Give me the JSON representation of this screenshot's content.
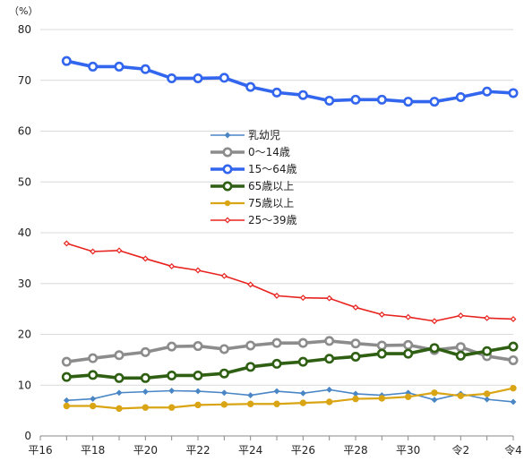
{
  "chart_data": {
    "type": "line",
    "ylabel": "（%）",
    "ylim": [
      0,
      80
    ],
    "yticks": [
      0,
      10,
      20,
      30,
      40,
      50,
      60,
      70,
      80
    ],
    "x_tick_labels": [
      "平16",
      "平18",
      "平20",
      "平22",
      "平24",
      "平26",
      "平28",
      "平30",
      "令2",
      "令4"
    ],
    "grid": "horizontal",
    "legend_position": "center",
    "x": [
      17,
      18,
      19,
      20,
      21,
      22,
      23,
      24,
      25,
      26,
      27,
      28,
      29,
      30,
      31,
      32,
      33,
      34
    ],
    "series": [
      {
        "name": "乳幼児",
        "color": "#4a86c6",
        "marker": "diamond",
        "values": [
          7.0,
          7.3,
          8.5,
          8.7,
          8.9,
          8.8,
          8.5,
          8.0,
          8.8,
          8.4,
          9.1,
          8.3,
          8.0,
          8.5,
          7.1,
          8.3,
          7.2,
          6.7
        ]
      },
      {
        "name": "0～14歳",
        "color": "#8c8c8c",
        "marker": "circle",
        "values": [
          14.6,
          15.3,
          15.9,
          16.5,
          17.6,
          17.7,
          17.1,
          17.8,
          18.3,
          18.3,
          18.7,
          18.2,
          17.8,
          17.9,
          16.9,
          17.5,
          15.7,
          14.9
        ]
      },
      {
        "name": "15～64歳",
        "color": "#3366ee",
        "marker": "circle",
        "values": [
          73.8,
          72.7,
          72.7,
          72.2,
          70.4,
          70.4,
          70.5,
          68.7,
          67.6,
          67.1,
          66.0,
          66.2,
          66.2,
          65.8,
          65.8,
          66.7,
          67.8,
          67.5
        ]
      },
      {
        "name": "65歳以上",
        "color": "#2e5f12",
        "marker": "circle",
        "values": [
          11.6,
          12.0,
          11.4,
          11.4,
          11.9,
          11.9,
          12.3,
          13.6,
          14.2,
          14.6,
          15.2,
          15.6,
          16.2,
          16.2,
          17.3,
          15.8,
          16.7,
          17.6
        ]
      },
      {
        "name": "75歳以上",
        "color": "#d9a514",
        "marker": "circle",
        "values": [
          5.9,
          5.9,
          5.4,
          5.6,
          5.6,
          6.1,
          6.2,
          6.3,
          6.3,
          6.5,
          6.7,
          7.3,
          7.4,
          7.7,
          8.5,
          7.9,
          8.3,
          9.4
        ]
      },
      {
        "name": "25～39歳",
        "color": "#e8231f",
        "marker": "diamond",
        "values": [
          37.9,
          36.3,
          36.5,
          34.9,
          33.4,
          32.6,
          31.5,
          29.8,
          27.6,
          27.2,
          27.1,
          25.3,
          23.9,
          23.4,
          22.6,
          23.7,
          23.2,
          23.0
        ]
      }
    ]
  }
}
